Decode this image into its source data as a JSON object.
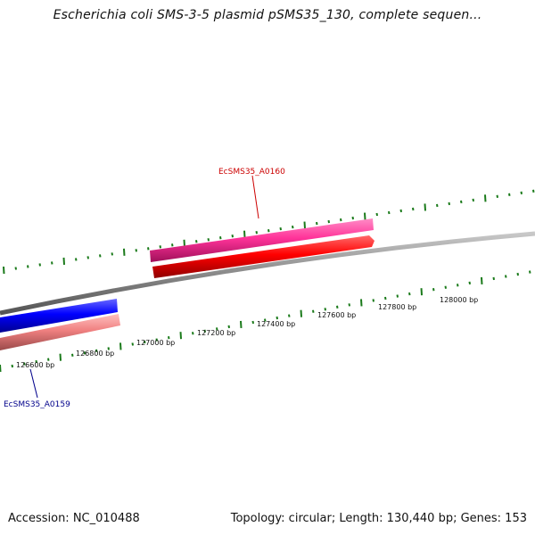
{
  "title": "Escherichia coli SMS-3-5 plasmid pSMS35_130, complete sequen...",
  "footer": {
    "accession": "Accession: NC_010488",
    "summary": "Topology: circular; Length: 130,440 bp; Genes: 153"
  },
  "genes": [
    {
      "id": "EcSMS35_A0160",
      "color": "#cc0000"
    },
    {
      "id": "EcSMS35_A0159",
      "color": "#00008b"
    }
  ],
  "ticks": [
    "126600 bp",
    "126800 bp",
    "127000 bp",
    "127200 bp",
    "127400 bp",
    "127600 bp",
    "127800 bp",
    "128000 bp"
  ],
  "colors": {
    "backbone": "#8a8a8a",
    "tick": "#1a7a1a",
    "gene_red": "#ff0000",
    "gene_pink": "#ff3399",
    "gene_blue": "#0000ff",
    "gene_salmon": "#f08080"
  }
}
